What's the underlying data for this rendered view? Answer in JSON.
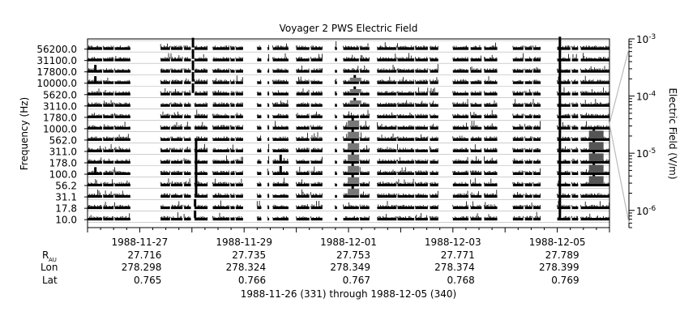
{
  "chart_data": {
    "type": "heatmap",
    "title": "Voyager 2 PWS Electric Field",
    "ylabel": "Frequency (Hz)",
    "colorbar_label": "Electric Field (V/m)",
    "colorbar_scale": "log",
    "colorbar_range": [
      5e-07,
      0.001
    ],
    "colorbar_ticks": [
      {
        "base": "10",
        "exp": "-3",
        "value": 0.001
      },
      {
        "base": "10",
        "exp": "-4",
        "value": 0.0001
      },
      {
        "base": "10",
        "exp": "-5",
        "value": 1e-05
      },
      {
        "base": "10",
        "exp": "-6",
        "value": 1e-06
      }
    ],
    "y_tick_labels": [
      "56200.0",
      "31100.0",
      "17800.0",
      "10000.0",
      "5620.0",
      "3110.0",
      "1780.0",
      "1000.0",
      "562.0",
      "311.0",
      "178.0",
      "100.0",
      "56.2",
      "31.1",
      "17.8",
      "10.0"
    ],
    "x_range_days": [
      0,
      10
    ],
    "x_ticks": [
      {
        "day": 1,
        "date": "1988-11-27",
        "rau": "27.716",
        "lon": "278.298",
        "lat": "0.765"
      },
      {
        "day": 3,
        "date": "1988-11-29",
        "rau": "27.735",
        "lon": "278.324",
        "lat": "0.766"
      },
      {
        "day": 5,
        "date": "1988-12-01",
        "rau": "27.753",
        "lon": "278.349",
        "lat": "0.767"
      },
      {
        "day": 7,
        "date": "1988-12-03",
        "rau": "27.771",
        "lon": "278.374",
        "lat": "0.768"
      },
      {
        "day": 9,
        "date": "1988-12-05",
        "rau": "27.789",
        "lon": "278.399",
        "lat": "0.769"
      }
    ],
    "ephemeris_labels": {
      "rau_main": "R",
      "rau_sub": "AU",
      "lon": "Lon",
      "lat": "Lat"
    },
    "caption": "1988-11-26 (331) through 1988-12-05 (340)",
    "data_segments_days": [
      [
        0.0,
        0.28
      ],
      [
        0.3,
        0.5
      ],
      [
        0.52,
        0.82
      ],
      [
        1.4,
        1.58
      ],
      [
        1.6,
        1.82
      ],
      [
        1.85,
        1.98
      ],
      [
        2.05,
        2.3
      ],
      [
        2.4,
        2.72
      ],
      [
        2.74,
        2.82
      ],
      [
        2.84,
        2.98
      ],
      [
        3.25,
        3.33
      ],
      [
        3.45,
        3.48
      ],
      [
        3.55,
        3.85
      ],
      [
        4.0,
        4.25
      ],
      [
        4.28,
        4.5
      ],
      [
        4.74,
        4.78
      ],
      [
        4.9,
        5.2
      ],
      [
        5.22,
        5.4
      ],
      [
        5.55,
        5.92
      ],
      [
        5.94,
        6.26
      ],
      [
        6.28,
        6.52
      ],
      [
        6.56,
        6.72
      ],
      [
        7.0,
        7.3
      ],
      [
        7.34,
        7.55
      ],
      [
        7.6,
        7.85
      ],
      [
        8.15,
        8.35
      ],
      [
        8.38,
        8.52
      ],
      [
        8.54,
        8.68
      ],
      [
        9.0,
        9.25
      ],
      [
        9.28,
        9.4
      ],
      [
        9.45,
        10.0
      ]
    ],
    "bursts": [
      {
        "day": 2.02,
        "channels": [
          0,
          1,
          2,
          3,
          4
        ],
        "level": 0.9
      },
      {
        "day": 2.08,
        "channels": [
          9,
          10,
          11,
          12,
          13
        ],
        "level": 1.0
      },
      {
        "day": 2.06,
        "channels": [
          14,
          15
        ],
        "level": 0.7
      },
      {
        "day": 5.08,
        "channels": [
          7,
          8,
          9,
          10,
          11,
          12,
          13
        ],
        "level": 1.0
      },
      {
        "day": 5.12,
        "channels": [
          3,
          4,
          5
        ],
        "level": 0.6
      },
      {
        "day": 9.05,
        "channels": [
          0,
          1,
          2,
          3,
          4,
          5,
          6,
          7,
          8,
          9,
          10,
          11,
          12,
          13,
          14,
          15
        ],
        "level": 1.0
      },
      {
        "day": 9.7,
        "channels": [
          8,
          9,
          10,
          11,
          12
        ],
        "level": 0.9
      },
      {
        "day": 3.7,
        "channels": [
          10,
          11
        ],
        "level": 0.6
      },
      {
        "day": 0.15,
        "channels": [
          2,
          3,
          11
        ],
        "level": 0.5
      }
    ]
  }
}
